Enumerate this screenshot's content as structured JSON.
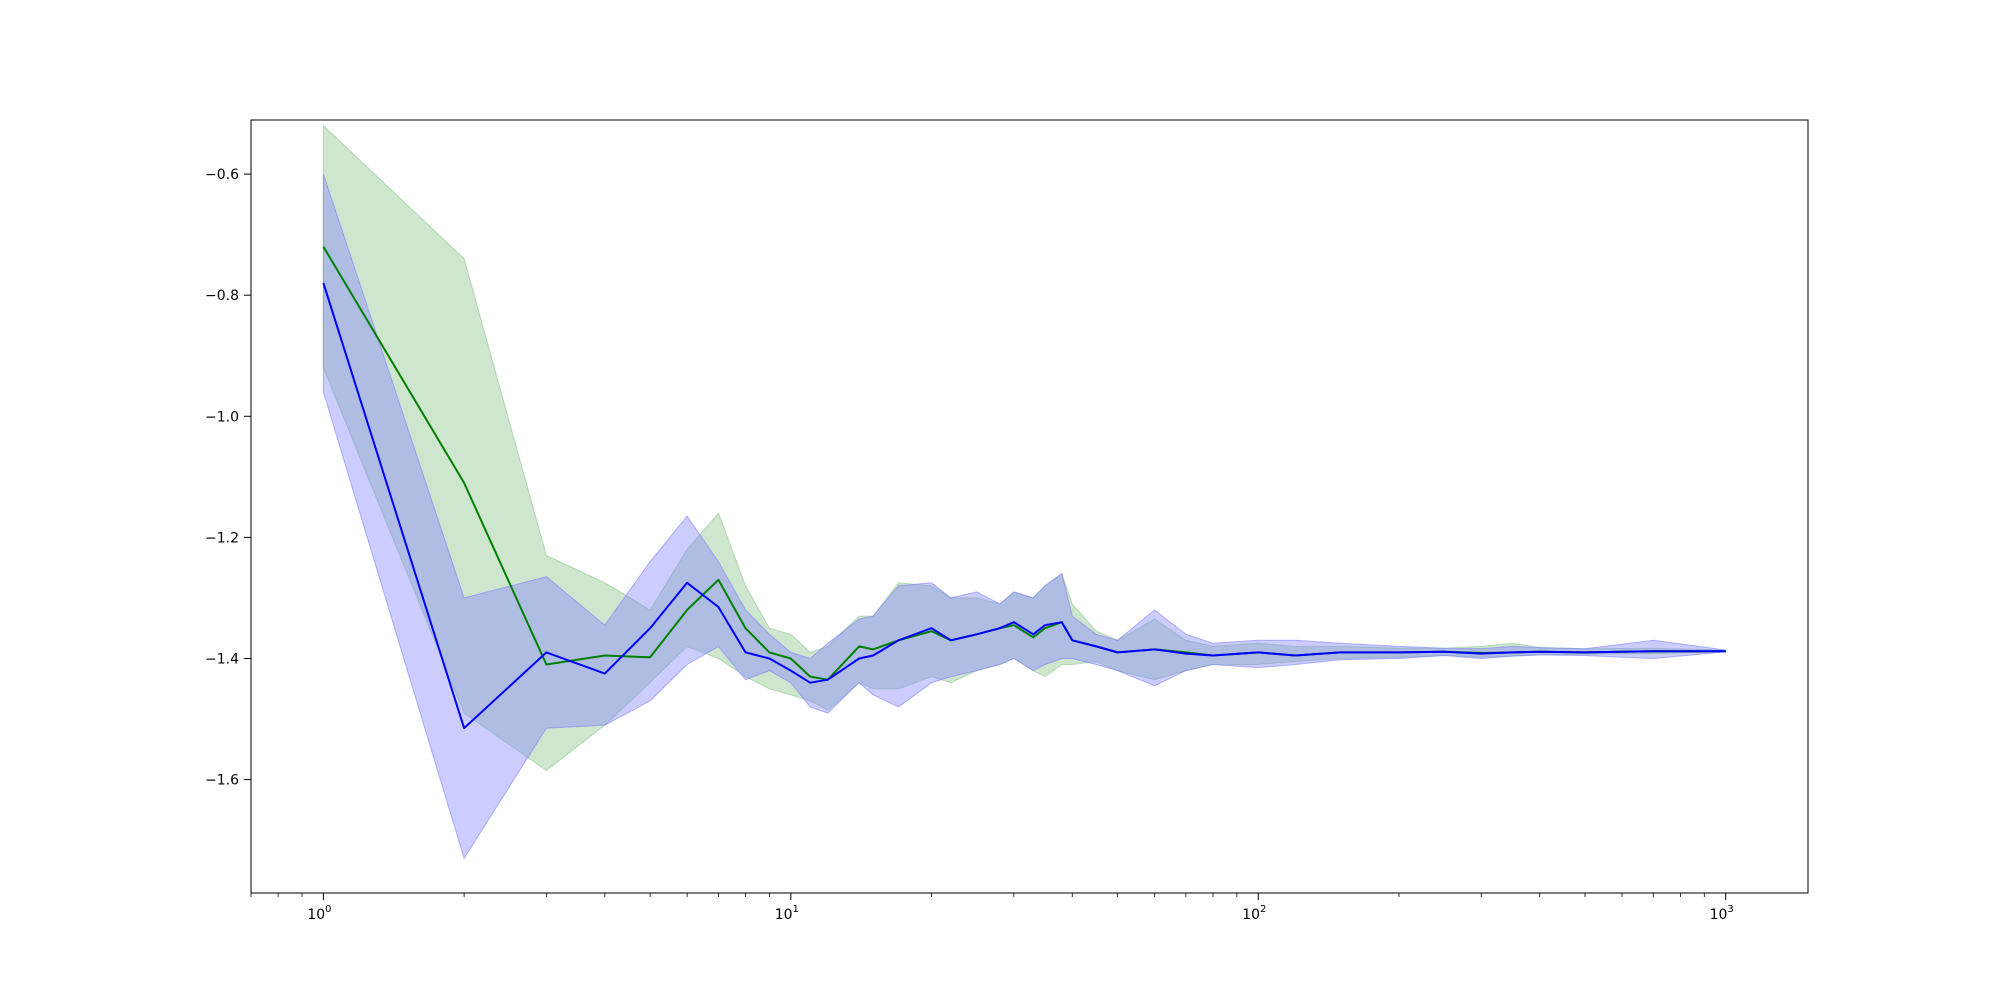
{
  "chart_data": {
    "type": "line",
    "title": "",
    "xlabel": "",
    "ylabel": "",
    "xscale": "log",
    "xlim": [
      0.7,
      1500
    ],
    "ylim": [
      -1.7873,
      -0.5107
    ],
    "grid": false,
    "x_ticks": [
      {
        "base": "10",
        "exp": "0",
        "value": 1
      },
      {
        "base": "10",
        "exp": "1",
        "value": 10
      },
      {
        "base": "10",
        "exp": "2",
        "value": 100
      },
      {
        "base": "10",
        "exp": "3",
        "value": 1000
      }
    ],
    "y_ticks": [
      {
        "label": "−0.6",
        "value": -0.6
      },
      {
        "label": "−0.8",
        "value": -0.8
      },
      {
        "label": "−1.0",
        "value": -1.0
      },
      {
        "label": "−1.2",
        "value": -1.2
      },
      {
        "label": "−1.4",
        "value": -1.4
      },
      {
        "label": "−1.6",
        "value": -1.6
      }
    ],
    "series": [
      {
        "color": "#008000",
        "band_color": "#90c890",
        "band_opacity": 0.45,
        "line_color": "#008000",
        "x": [
          1,
          2,
          3,
          4,
          5,
          6,
          7,
          8,
          9,
          10,
          11,
          12,
          14,
          15,
          17,
          20,
          22,
          25,
          28,
          30,
          33,
          35,
          38,
          40,
          45,
          50,
          60,
          70,
          80,
          100,
          120,
          150,
          200,
          250,
          300,
          350,
          400,
          500,
          700,
          1000
        ],
        "y": [
          -0.72,
          -1.11,
          -1.41,
          -1.395,
          -1.398,
          -1.32,
          -1.27,
          -1.35,
          -1.39,
          -1.4,
          -1.43,
          -1.435,
          -1.38,
          -1.385,
          -1.37,
          -1.355,
          -1.37,
          -1.36,
          -1.35,
          -1.345,
          -1.365,
          -1.35,
          -1.34,
          -1.37,
          -1.38,
          -1.39,
          -1.385,
          -1.39,
          -1.395,
          -1.39,
          -1.395,
          -1.39,
          -1.39,
          -1.389,
          -1.391,
          -1.39,
          -1.389,
          -1.39,
          -1.388,
          -1.388
        ],
        "lower": [
          -0.92,
          -1.49,
          -1.585,
          -1.51,
          -1.44,
          -1.38,
          -1.4,
          -1.43,
          -1.45,
          -1.46,
          -1.47,
          -1.485,
          -1.44,
          -1.45,
          -1.45,
          -1.43,
          -1.44,
          -1.42,
          -1.41,
          -1.4,
          -1.42,
          -1.43,
          -1.41,
          -1.41,
          -1.405,
          -1.42,
          -1.435,
          -1.42,
          -1.41,
          -1.41,
          -1.405,
          -1.4,
          -1.398,
          -1.395,
          -1.398,
          -1.396,
          -1.394,
          -1.393,
          -1.392,
          -1.389
        ],
        "upper": [
          -0.52,
          -0.74,
          -1.23,
          -1.275,
          -1.32,
          -1.22,
          -1.16,
          -1.28,
          -1.35,
          -1.36,
          -1.39,
          -1.38,
          -1.33,
          -1.33,
          -1.275,
          -1.28,
          -1.3,
          -1.3,
          -1.31,
          -1.29,
          -1.3,
          -1.28,
          -1.26,
          -1.31,
          -1.355,
          -1.37,
          -1.335,
          -1.37,
          -1.38,
          -1.375,
          -1.38,
          -1.38,
          -1.383,
          -1.383,
          -1.38,
          -1.375,
          -1.382,
          -1.384,
          -1.383,
          -1.386
        ]
      },
      {
        "color": "#0000ff",
        "band_color": "#8080ff",
        "band_opacity": 0.4,
        "line_color": "#0000ff",
        "x": [
          1,
          2,
          3,
          4,
          5,
          6,
          7,
          8,
          9,
          10,
          11,
          12,
          14,
          15,
          17,
          20,
          22,
          25,
          28,
          30,
          33,
          35,
          38,
          40,
          45,
          50,
          60,
          70,
          80,
          100,
          120,
          150,
          200,
          250,
          300,
          350,
          400,
          500,
          700,
          1000
        ],
        "y": [
          -0.78,
          -1.515,
          -1.39,
          -1.425,
          -1.35,
          -1.275,
          -1.315,
          -1.39,
          -1.4,
          -1.42,
          -1.44,
          -1.435,
          -1.4,
          -1.395,
          -1.37,
          -1.35,
          -1.37,
          -1.36,
          -1.35,
          -1.34,
          -1.36,
          -1.345,
          -1.34,
          -1.37,
          -1.38,
          -1.39,
          -1.385,
          -1.392,
          -1.395,
          -1.39,
          -1.395,
          -1.39,
          -1.39,
          -1.389,
          -1.392,
          -1.39,
          -1.389,
          -1.39,
          -1.388,
          -1.388
        ],
        "lower": [
          -0.96,
          -1.73,
          -1.515,
          -1.51,
          -1.47,
          -1.41,
          -1.38,
          -1.435,
          -1.42,
          -1.44,
          -1.48,
          -1.49,
          -1.44,
          -1.46,
          -1.48,
          -1.44,
          -1.43,
          -1.42,
          -1.41,
          -1.4,
          -1.42,
          -1.41,
          -1.4,
          -1.4,
          -1.41,
          -1.42,
          -1.445,
          -1.42,
          -1.41,
          -1.415,
          -1.41,
          -1.402,
          -1.4,
          -1.395,
          -1.4,
          -1.396,
          -1.394,
          -1.395,
          -1.4,
          -1.389
        ],
        "upper": [
          -0.6,
          -1.3,
          -1.265,
          -1.345,
          -1.24,
          -1.165,
          -1.24,
          -1.32,
          -1.36,
          -1.39,
          -1.4,
          -1.375,
          -1.335,
          -1.33,
          -1.28,
          -1.275,
          -1.3,
          -1.29,
          -1.31,
          -1.29,
          -1.3,
          -1.28,
          -1.26,
          -1.33,
          -1.36,
          -1.37,
          -1.32,
          -1.36,
          -1.375,
          -1.37,
          -1.37,
          -1.375,
          -1.38,
          -1.383,
          -1.384,
          -1.38,
          -1.382,
          -1.384,
          -1.37,
          -1.386
        ]
      }
    ]
  }
}
